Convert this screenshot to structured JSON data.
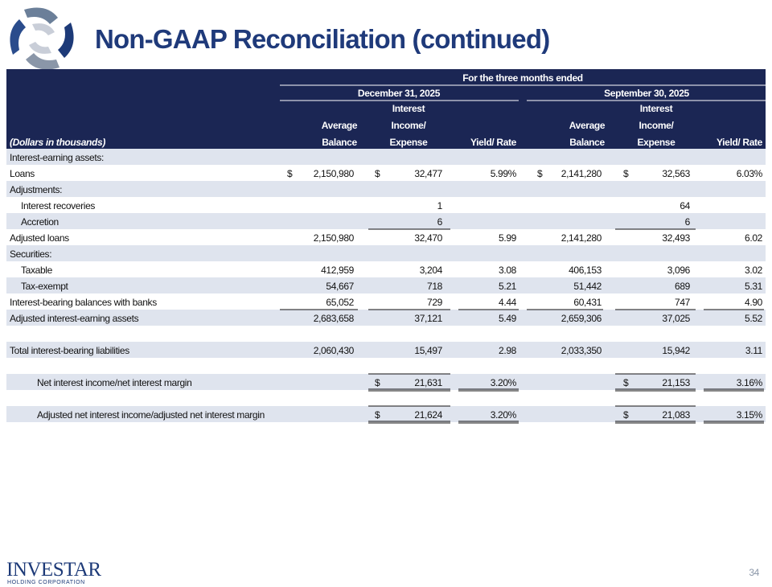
{
  "header": {
    "title": "Non-GAAP Reconciliation (continued)"
  },
  "table": {
    "period_header": "For the three months ended",
    "periods": [
      "December 31, 2025",
      "September 30, 2025"
    ],
    "units": "(Dollars in thousands)",
    "columns": [
      [
        "Average",
        "Balance"
      ],
      [
        "Interest",
        "Income/",
        "Expense"
      ],
      [
        "Yield/ Rate"
      ],
      [
        "Average",
        "Balance"
      ],
      [
        "Interest",
        "Income/",
        "Expense"
      ],
      [
        "Yield/ Rate"
      ]
    ],
    "rows": [
      {
        "label": "Interest-earning assets:",
        "signs": [
          null,
          null,
          null,
          null,
          null,
          null
        ],
        "cells": [
          null,
          null,
          null,
          null,
          null,
          null
        ]
      },
      {
        "label": "Loans",
        "signs": [
          "$",
          "$",
          null,
          "$",
          "$",
          null
        ],
        "cells": [
          "2,150,980",
          "32,477",
          "5.99%",
          "2,141,280",
          "32,563",
          "6.03%"
        ]
      },
      {
        "label": "Adjustments:",
        "signs": [
          null,
          null,
          null,
          null,
          null,
          null
        ],
        "cells": [
          null,
          null,
          null,
          null,
          null,
          null
        ]
      },
      {
        "label": "Interest recoveries",
        "signs": [
          null,
          null,
          null,
          null,
          null,
          null
        ],
        "cells": [
          null,
          "1",
          null,
          null,
          "64",
          null
        ]
      },
      {
        "label": "Accretion",
        "signs": [
          null,
          null,
          null,
          null,
          null,
          null
        ],
        "cells": [
          null,
          "6",
          null,
          null,
          "6",
          null
        ]
      },
      {
        "label": "Adjusted loans",
        "signs": [
          null,
          null,
          null,
          null,
          null,
          null
        ],
        "cells": [
          "2,150,980",
          "32,470",
          "5.99",
          "2,141,280",
          "32,493",
          "6.02"
        ]
      },
      {
        "label": "Securities:",
        "signs": [
          null,
          null,
          null,
          null,
          null,
          null
        ],
        "cells": [
          null,
          null,
          null,
          null,
          null,
          null
        ]
      },
      {
        "label": "Taxable",
        "signs": [
          null,
          null,
          null,
          null,
          null,
          null
        ],
        "cells": [
          "412,959",
          "3,204",
          "3.08",
          "406,153",
          "3,096",
          "3.02"
        ]
      },
      {
        "label": "Tax-exempt",
        "signs": [
          null,
          null,
          null,
          null,
          null,
          null
        ],
        "cells": [
          "54,667",
          "718",
          "5.21",
          "51,442",
          "689",
          "5.31"
        ]
      },
      {
        "label": "Interest-bearing balances with banks",
        "signs": [
          null,
          null,
          null,
          null,
          null,
          null
        ],
        "cells": [
          "65,052",
          "729",
          "4.44",
          "60,431",
          "747",
          "4.90"
        ]
      },
      {
        "label": "Adjusted interest-earning assets",
        "signs": [
          null,
          null,
          null,
          null,
          null,
          null
        ],
        "cells": [
          "2,683,658",
          "37,121",
          "5.49",
          "2,659,306",
          "37,025",
          "5.52"
        ]
      },
      null,
      {
        "label": "Total interest-bearing liabilities",
        "signs": [
          null,
          null,
          null,
          null,
          null,
          null
        ],
        "cells": [
          "2,060,430",
          "15,497",
          "2.98",
          "2,033,350",
          "15,942",
          "3.11"
        ]
      },
      null,
      {
        "label": "Net interest income/net interest margin",
        "signs": [
          null,
          "$",
          null,
          null,
          "$",
          null
        ],
        "cells": [
          null,
          "21,631",
          "3.20%",
          null,
          "21,153",
          "3.16%"
        ]
      },
      null,
      {
        "label": "Adjusted net interest income/adjusted net interest margin",
        "signs": [
          null,
          "$",
          null,
          null,
          "$",
          null
        ],
        "cells": [
          null,
          "21,624",
          "3.20%",
          null,
          "21,083",
          "3.15%"
        ]
      }
    ]
  },
  "footer": {
    "company": "INVESTAR",
    "subtitle": "HOLDING CORPORATION",
    "page_number": "34"
  }
}
